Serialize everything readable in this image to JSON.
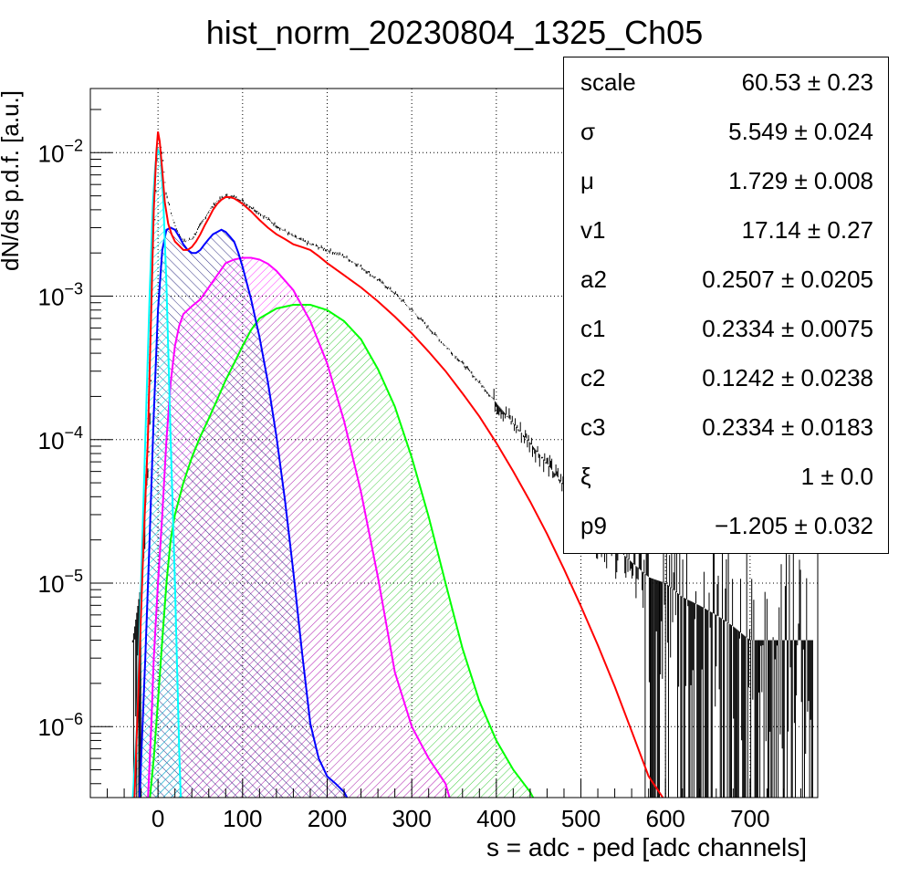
{
  "chart_data": {
    "type": "histogram",
    "title": "hist_norm_20230804_1325_Ch05",
    "xlabel": "s = adc - ped [adc channels]",
    "ylabel": "dN/ds p.d.f. [a.u.]",
    "xlim": [
      -80,
      780
    ],
    "ylim": [
      3.2e-07,
      0.028
    ],
    "y_scale": "log",
    "grid": true,
    "x_ticks": [
      0,
      100,
      200,
      300,
      400,
      500,
      600,
      700
    ],
    "x_tick_labels": [
      "0",
      "100",
      "200",
      "300",
      "400",
      "500",
      "600",
      "700"
    ],
    "y_ticks": [
      1e-06,
      1e-05,
      0.0001,
      0.001,
      0.01
    ],
    "y_tick_labels": [
      {
        "base": "10",
        "exp": "−6"
      },
      {
        "base": "10",
        "exp": "−5"
      },
      {
        "base": "10",
        "exp": "−4"
      },
      {
        "base": "10",
        "exp": "−3"
      },
      {
        "base": "10",
        "exp": "−2"
      }
    ],
    "data_histogram": {
      "color": "#000000",
      "x": [
        -30,
        -20,
        -10,
        -5,
        0,
        5,
        10,
        20,
        30,
        40,
        50,
        60,
        70,
        80,
        90,
        100,
        120,
        140,
        160,
        180,
        200,
        220,
        240,
        260,
        280,
        300,
        320,
        340,
        360,
        380,
        400,
        420,
        440,
        460,
        480,
        500,
        520,
        540,
        560,
        580,
        600,
        620,
        640,
        660,
        680,
        700,
        720,
        740,
        760,
        775
      ],
      "y": [
        4e-06,
        1e-05,
        0.0001,
        0.002,
        0.014,
        0.01,
        0.005,
        0.0031,
        0.0024,
        0.0025,
        0.0031,
        0.0039,
        0.0046,
        0.005,
        0.0049,
        0.0046,
        0.0038,
        0.0031,
        0.0026,
        0.0023,
        0.0021,
        0.0019,
        0.0016,
        0.0013,
        0.00105,
        0.0008,
        0.0006,
        0.00045,
        0.00034,
        0.00025,
        0.00018,
        0.00013,
        9.5e-05,
        6.8e-05,
        4.8e-05,
        3.3e-05,
        2.4e-05,
        1.8e-05,
        1.4e-05,
        1.1e-05,
        1e-05,
        8e-06,
        7e-06,
        6e-06,
        5e-06,
        4e-06,
        4e-06,
        4e-06,
        4e-06,
        4e-06
      ]
    },
    "series": [
      {
        "color": "#ff0000",
        "fill": "none",
        "x": [
          -28,
          -22,
          -17,
          -12,
          -8,
          -5,
          -2,
          0,
          2,
          5,
          8,
          12,
          16,
          20,
          25,
          30,
          35,
          40,
          45,
          50,
          55,
          60,
          65,
          70,
          75,
          80,
          85,
          90,
          95,
          100,
          110,
          120,
          130,
          140,
          150,
          160,
          170,
          180,
          190,
          200,
          220,
          240,
          260,
          280,
          300,
          320,
          340,
          360,
          380,
          400,
          420,
          440,
          460,
          480,
          500,
          520,
          540,
          560,
          580,
          600
        ],
        "y": [
          3e-07,
          3e-06,
          2e-05,
          0.0001,
          0.0008,
          0.004,
          0.01,
          0.014,
          0.012,
          0.0075,
          0.0045,
          0.0032,
          0.0027,
          0.0024,
          0.00225,
          0.0021,
          0.0021,
          0.0022,
          0.0024,
          0.0027,
          0.0031,
          0.0035,
          0.004,
          0.0044,
          0.0047,
          0.0049,
          0.0049,
          0.0048,
          0.0046,
          0.0044,
          0.0039,
          0.0034,
          0.003,
          0.0027,
          0.0025,
          0.0023,
          0.0022,
          0.0021,
          0.0019,
          0.0017,
          0.0014,
          0.00115,
          0.00092,
          0.00072,
          0.00055,
          0.00041,
          0.0003,
          0.00021,
          0.000145,
          9.5e-05,
          6e-05,
          3.7e-05,
          2.2e-05,
          1.25e-05,
          6.9e-06,
          3.7e-06,
          1.9e-06,
          9.3e-07,
          4.5e-07,
          3e-07
        ]
      },
      {
        "color": "#00ffff",
        "fill": "#00ffff",
        "x": [
          -30,
          -25,
          -20,
          -15,
          -10,
          -6,
          -3,
          0,
          3,
          6,
          10,
          15,
          20,
          25,
          27
        ],
        "y": [
          3e-07,
          1e-06,
          1e-05,
          0.0001,
          0.001,
          0.0045,
          0.0085,
          0.0105,
          0.0095,
          0.005,
          0.0012,
          0.0001,
          1e-05,
          7e-07,
          3e-07
        ]
      },
      {
        "color": "#0000ff",
        "fill": "#000066",
        "x": [
          -22,
          -15,
          -10,
          -5,
          0,
          5,
          10,
          15,
          20,
          25,
          30,
          35,
          40,
          45,
          50,
          55,
          60,
          65,
          70,
          75,
          80,
          85,
          90,
          95,
          100,
          110,
          120,
          130,
          140,
          150,
          160,
          170,
          180,
          190,
          200,
          210,
          220,
          226
        ],
        "y": [
          3e-07,
          3e-06,
          2e-05,
          0.00015,
          0.0008,
          0.0021,
          0.0029,
          0.003,
          0.0029,
          0.0026,
          0.0023,
          0.0021,
          0.002,
          0.002,
          0.0021,
          0.0023,
          0.0025,
          0.0027,
          0.0028,
          0.0029,
          0.0028,
          0.0026,
          0.0024,
          0.002,
          0.0016,
          0.00095,
          0.00052,
          0.00025,
          0.000105,
          3.8e-05,
          1.2e-05,
          3.4e-06,
          1.05e-06,
          6e-07,
          4.5e-07,
          4e-07,
          3.5e-07,
          3e-07
        ]
      },
      {
        "color": "#ff00ff",
        "fill": "#ff00ff",
        "x": [
          -12,
          -8,
          -5,
          0,
          5,
          10,
          15,
          20,
          25,
          30,
          40,
          50,
          60,
          70,
          80,
          90,
          100,
          110,
          120,
          130,
          140,
          160,
          180,
          200,
          220,
          240,
          260,
          280,
          300,
          320,
          340,
          346
        ],
        "y": [
          3e-07,
          1e-06,
          3e-06,
          1e-05,
          3e-05,
          0.0001,
          0.00025,
          0.00045,
          0.00062,
          0.00075,
          0.00085,
          0.00095,
          0.00115,
          0.0014,
          0.0017,
          0.0018,
          0.00185,
          0.00185,
          0.0018,
          0.00168,
          0.0015,
          0.0011,
          0.00067,
          0.00034,
          0.000135,
          4.3e-05,
          1.1e-05,
          2.4e-06,
          1e-06,
          6e-07,
          4e-07,
          3e-07
        ]
      },
      {
        "color": "#00ff00",
        "fill": "#00bb00",
        "x": [
          -10,
          -5,
          0,
          5,
          10,
          15,
          20,
          30,
          40,
          50,
          60,
          70,
          80,
          90,
          100,
          110,
          120,
          140,
          160,
          180,
          200,
          220,
          240,
          260,
          280,
          300,
          320,
          340,
          360,
          380,
          400,
          420,
          440,
          446
        ],
        "y": [
          3e-07,
          6e-07,
          1.5e-06,
          4e-06,
          1e-05,
          2e-05,
          3e-05,
          5e-05,
          7.5e-05,
          0.000105,
          0.00014,
          0.00019,
          0.00026,
          0.00034,
          0.00045,
          0.00058,
          0.0007,
          0.00082,
          0.00087,
          0.00087,
          0.0008,
          0.00067,
          0.0005,
          0.00031,
          0.00017,
          7.5e-05,
          2.9e-05,
          1e-05,
          3.5e-06,
          1.5e-06,
          8e-07,
          5e-07,
          3.5e-07,
          3e-07
        ]
      }
    ],
    "stats_box": [
      {
        "name": "scale",
        "value": "60.53 ± 0.23"
      },
      {
        "name": "σ",
        "value": "5.549 ± 0.024"
      },
      {
        "name": "μ",
        "value": "1.729 ± 0.008"
      },
      {
        "name": "v1",
        "value": "17.14 ± 0.27"
      },
      {
        "name": "a2",
        "value": "0.2507 ± 0.0205"
      },
      {
        "name": "c1",
        "value": "0.2334 ± 0.0075"
      },
      {
        "name": "c2",
        "value": "0.1242 ± 0.0238"
      },
      {
        "name": "c3",
        "value": "0.2334 ± 0.0183"
      },
      {
        "name": "ξ",
        "value": "1 ± 0.0"
      },
      {
        "name": "p9",
        "value": "−1.205 ± 0.032"
      }
    ]
  }
}
